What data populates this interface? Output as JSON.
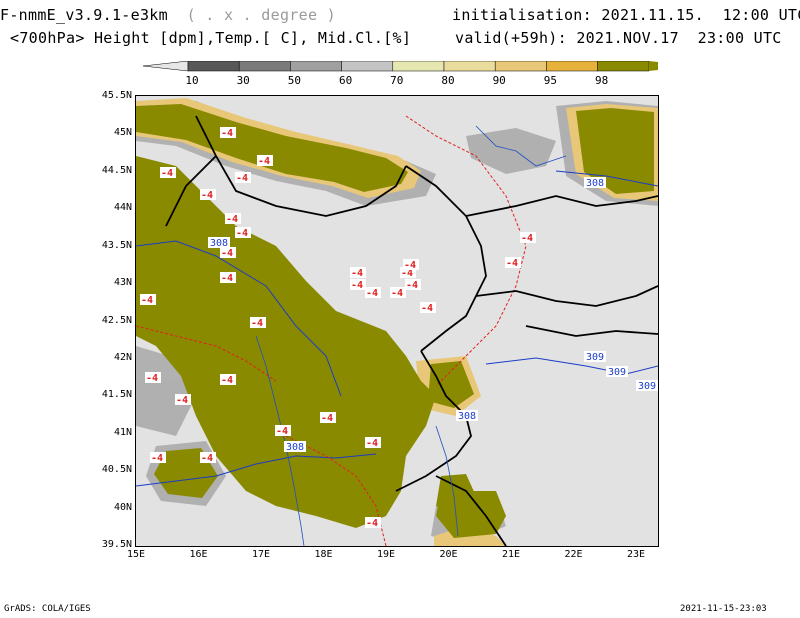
{
  "header": {
    "model_title": "F-nmmE_v3.9.1-e3km",
    "grid_note": "( . x . degree )",
    "field_desc": "<700hPa> Height [dpm],Temp.[ C], Mid.Cl.[%]",
    "init_label": "initialisation:",
    "init_value": "2021.11.15.  12:00 UTC",
    "valid_label": "valid(+59h):",
    "valid_value": "2021.NOV.17  23:00 UTC"
  },
  "colorbar": {
    "levels": [
      "10",
      "30",
      "50",
      "60",
      "70",
      "80",
      "90",
      "95",
      "98"
    ],
    "colors": [
      "#585858",
      "#7a7a7a",
      "#a0a0a0",
      "#c4c4c4",
      "#e6e6b0",
      "#eadc9c",
      "#e8c878",
      "#e6b23c",
      "#8a8a00"
    ]
  },
  "map": {
    "lat_labels": [
      "45.5N",
      "45N",
      "44.5N",
      "44N",
      "43.5N",
      "43N",
      "42.5N",
      "42N",
      "41.5N",
      "41N",
      "40.5N",
      "40N",
      "39.5N"
    ],
    "lon_labels": [
      "15E",
      "16E",
      "17E",
      "18E",
      "19E",
      "20E",
      "21E",
      "22E",
      "23E"
    ],
    "height_contours": [
      "308",
      "308",
      "308",
      "309",
      "309",
      "309",
      "308"
    ],
    "temp_labels": [
      "-4",
      "-4",
      "-4",
      "-4",
      "-4",
      "-4",
      "-4",
      "-4",
      "-4",
      "-4",
      "-4",
      "-4",
      "-4",
      "-4",
      "-4",
      "-4",
      "-4",
      "-4",
      "-4",
      "-4",
      "-4",
      "-4",
      "-4",
      "-4",
      "-4",
      "-4",
      "-4",
      "-4",
      "-4",
      "-4"
    ],
    "colors": {
      "background": "#e2e2e2",
      "cloud_dense": "#8a8a00",
      "cloud_edge": "#e8c878",
      "cloud_grey": "#a0a0a0",
      "height_line": "#1a3cc8",
      "temp_line": "#e02020",
      "border": "#000000",
      "river": "#2050c0"
    }
  },
  "footer": {
    "left": "GrADS: COLA/IGES",
    "right": "2021-11-15-23:03"
  }
}
